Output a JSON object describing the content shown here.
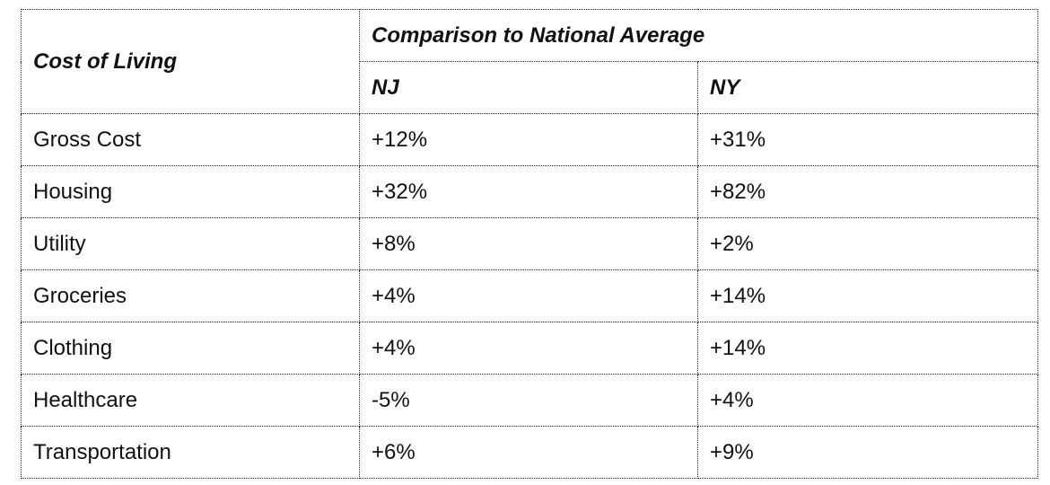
{
  "table": {
    "row_header_label": "Cost of Living",
    "group_header": "Comparison to National Average",
    "columns": [
      "NJ",
      "NY"
    ],
    "rows": [
      {
        "label": "Gross Cost",
        "nj": "+12%",
        "ny": "+31%"
      },
      {
        "label": "Housing",
        "nj": "+32%",
        "ny": "+82%"
      },
      {
        "label": "Utility",
        "nj": "+8%",
        "ny": "+2%"
      },
      {
        "label": "Groceries",
        "nj": "+4%",
        "ny": "+14%"
      },
      {
        "label": "Clothing",
        "nj": "+4%",
        "ny": "+14%"
      },
      {
        "label": "Healthcare",
        "nj": "-5%",
        "ny": "+4%"
      },
      {
        "label": "Transportation",
        "nj": "+6%",
        "ny": "+9%"
      }
    ]
  }
}
